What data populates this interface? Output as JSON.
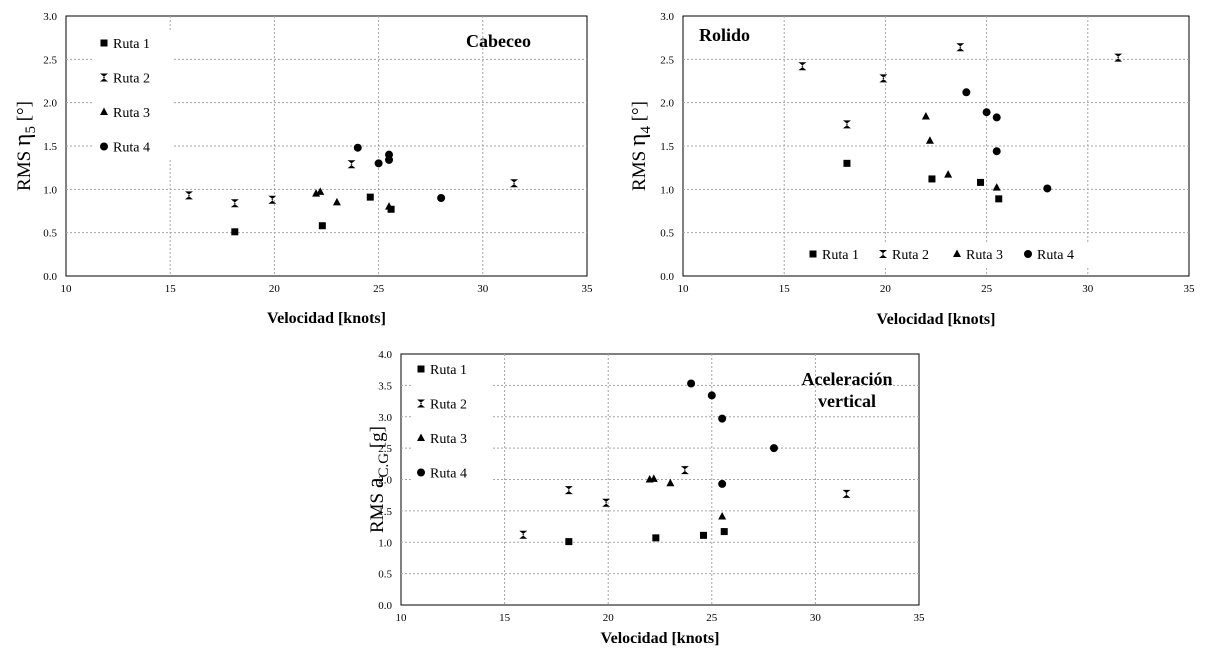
{
  "chart_data": [
    {
      "type": "scatter",
      "title": "Cabeceo",
      "xlabel": "Velocidad [knots]",
      "ylabel_prefix": "RMS",
      "ylabel_symbol": "η",
      "ylabel_sub": "5",
      "ylabel_unit": "[°]",
      "xlim": [
        10,
        35
      ],
      "ylim": [
        0,
        3
      ],
      "xticks": [
        "10",
        "15",
        "20",
        "25",
        "30",
        "35"
      ],
      "yticks": [
        "0.0",
        "0.5",
        "1.0",
        "1.5",
        "2.0",
        "2.5",
        "3.0"
      ],
      "grid": true,
      "legend_position": "top-left",
      "legend_layout": "vertical",
      "series": [
        {
          "name": "Ruta 1",
          "marker": "square",
          "points": [
            [
              18.1,
              0.51
            ],
            [
              22.3,
              0.58
            ],
            [
              24.6,
              0.91
            ],
            [
              25.6,
              0.77
            ]
          ]
        },
        {
          "name": "Ruta 2",
          "marker": "hourglass",
          "points": [
            [
              15.9,
              0.93
            ],
            [
              18.1,
              0.84
            ],
            [
              19.9,
              0.88
            ],
            [
              23.7,
              1.29
            ],
            [
              31.5,
              1.07
            ]
          ]
        },
        {
          "name": "Ruta 3",
          "marker": "triangle",
          "points": [
            [
              22.0,
              0.95
            ],
            [
              22.2,
              0.97
            ],
            [
              23.0,
              0.85
            ],
            [
              25.5,
              0.8
            ]
          ]
        },
        {
          "name": "Ruta 4",
          "marker": "circle",
          "points": [
            [
              24.0,
              1.48
            ],
            [
              25.0,
              1.3
            ],
            [
              25.5,
              1.4
            ],
            [
              25.5,
              1.34
            ],
            [
              28.0,
              0.9
            ]
          ]
        }
      ]
    },
    {
      "type": "scatter",
      "title": "Rolido",
      "xlabel": "Velocidad [knots]",
      "ylabel_prefix": "RMS",
      "ylabel_symbol": "η",
      "ylabel_sub": "4",
      "ylabel_unit": "[°]",
      "xlim": [
        10,
        35
      ],
      "ylim": [
        0,
        3
      ],
      "xticks": [
        "10",
        "15",
        "20",
        "25",
        "30",
        "35"
      ],
      "yticks": [
        "0.0",
        "0.5",
        "1.0",
        "1.5",
        "2.0",
        "2.5",
        "3.0"
      ],
      "grid": true,
      "legend_position": "bottom",
      "legend_layout": "horizontal",
      "series": [
        {
          "name": "Ruta 1",
          "marker": "square",
          "points": [
            [
              18.1,
              1.3
            ],
            [
              22.3,
              1.12
            ],
            [
              24.7,
              1.08
            ],
            [
              25.6,
              0.89
            ]
          ]
        },
        {
          "name": "Ruta 2",
          "marker": "hourglass",
          "points": [
            [
              15.9,
              2.42
            ],
            [
              18.1,
              1.75
            ],
            [
              19.9,
              2.28
            ],
            [
              23.7,
              2.64
            ],
            [
              31.5,
              2.52
            ]
          ]
        },
        {
          "name": "Ruta 3",
          "marker": "triangle",
          "points": [
            [
              22.0,
              1.84
            ],
            [
              22.2,
              1.56
            ],
            [
              23.1,
              1.17
            ],
            [
              25.5,
              1.02
            ]
          ]
        },
        {
          "name": "Ruta 4",
          "marker": "circle",
          "points": [
            [
              24.0,
              2.12
            ],
            [
              25.0,
              1.89
            ],
            [
              25.5,
              1.83
            ],
            [
              25.5,
              1.44
            ],
            [
              28.0,
              1.01
            ]
          ]
        }
      ]
    },
    {
      "type": "scatter",
      "title": "Aceleración vertical",
      "title_lines": [
        "Aceleración",
        "vertical"
      ],
      "xlabel": "Velocidad [knots]",
      "ylabel_prefix": "RMS",
      "ylabel_symbol": "a",
      "ylabel_sub": "C.G",
      "ylabel_unit": "[g]",
      "xlim": [
        10,
        35
      ],
      "ylim": [
        0,
        4
      ],
      "xticks": [
        "10",
        "15",
        "20",
        "25",
        "30",
        "35"
      ],
      "yticks": [
        "0.0",
        "0.5",
        "1.0",
        "1.5",
        "2.0",
        "2.5",
        "3.0",
        "3.5",
        "4.0"
      ],
      "grid": true,
      "legend_position": "top-left",
      "legend_layout": "vertical",
      "series": [
        {
          "name": "Ruta 1",
          "marker": "square",
          "points": [
            [
              18.1,
              1.01
            ],
            [
              22.3,
              1.07
            ],
            [
              24.6,
              1.11
            ],
            [
              25.6,
              1.17
            ]
          ]
        },
        {
          "name": "Ruta 2",
          "marker": "hourglass",
          "points": [
            [
              15.9,
              1.12
            ],
            [
              18.1,
              1.83
            ],
            [
              19.9,
              1.63
            ],
            [
              23.7,
              2.15
            ],
            [
              31.5,
              1.77
            ]
          ]
        },
        {
          "name": "Ruta 3",
          "marker": "triangle",
          "points": [
            [
              22.0,
              2.0
            ],
            [
              22.2,
              2.01
            ],
            [
              23.0,
              1.94
            ],
            [
              25.5,
              1.41
            ]
          ]
        },
        {
          "name": "Ruta 4",
          "marker": "circle",
          "points": [
            [
              24.0,
              3.53
            ],
            [
              25.0,
              3.34
            ],
            [
              25.5,
              2.97
            ],
            [
              25.5,
              1.93
            ],
            [
              28.0,
              2.5
            ]
          ]
        }
      ]
    }
  ]
}
